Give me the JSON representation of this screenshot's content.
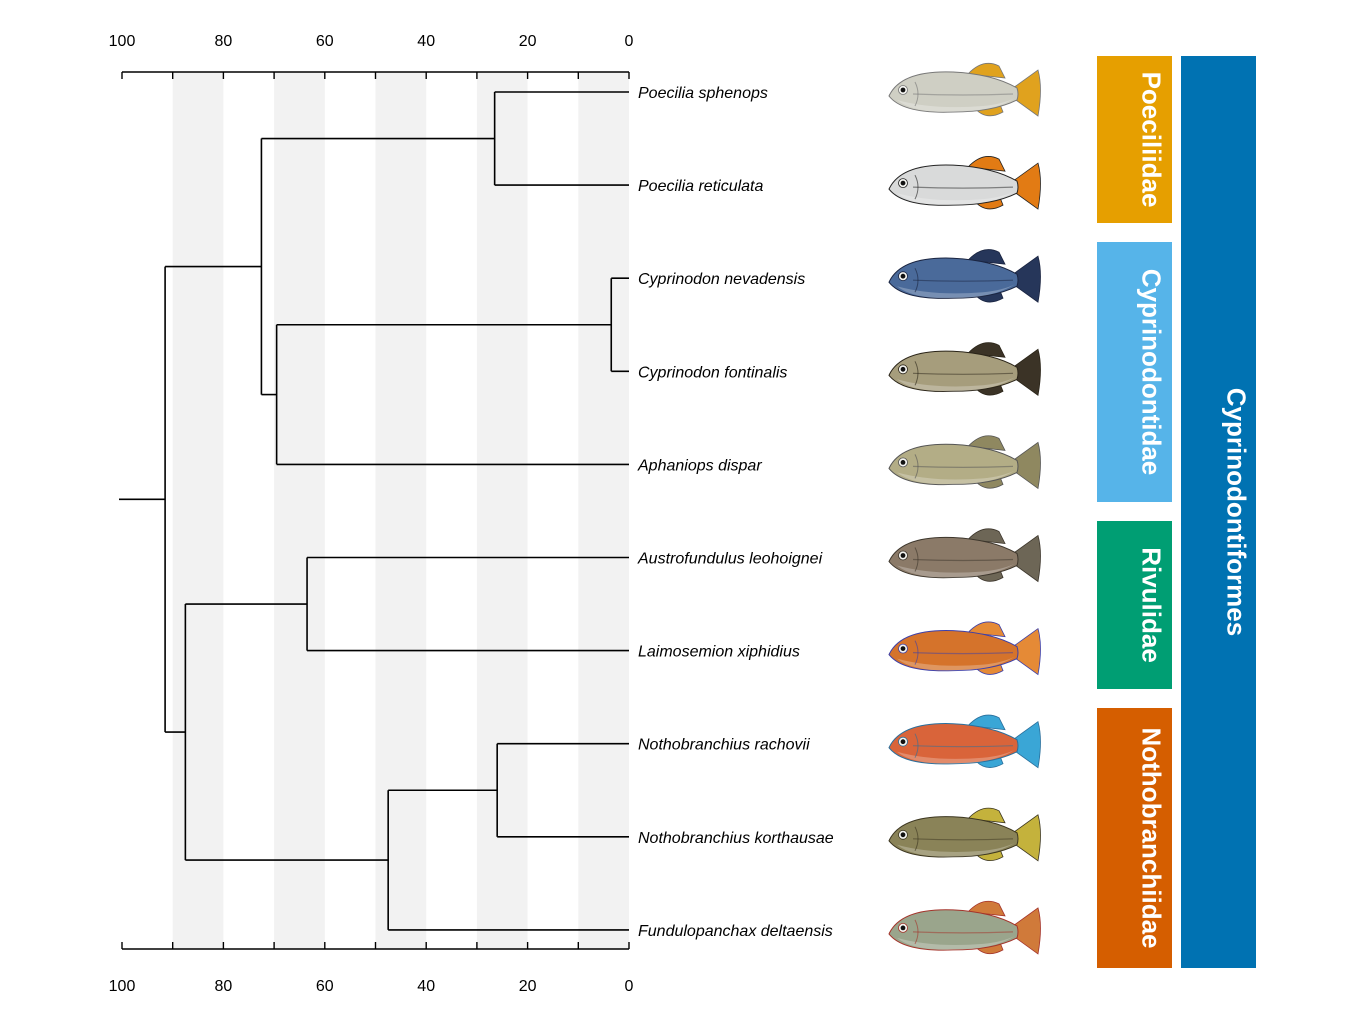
{
  "axis": {
    "ticks": [
      100,
      80,
      60,
      40,
      20,
      0
    ],
    "minor_ticks": [
      90,
      70,
      50,
      30,
      10
    ],
    "bands": [
      [
        90,
        80
      ],
      [
        70,
        60
      ],
      [
        50,
        40
      ],
      [
        30,
        20
      ],
      [
        10,
        0
      ]
    ]
  },
  "species": [
    "Poecilia sphenops",
    "Poecilia reticulata",
    "Cyprinodon nevadensis",
    "Cyprinodon fontinalis",
    "Aphaniops dispar",
    "Austrofundulus leohoignei",
    "Laimosemion xiphidius",
    "Nothobranchius rachovii",
    "Nothobranchius korthausae",
    "Fundulopanchax deltaensis"
  ],
  "fish_icons": [
    {
      "name": "fish-icon",
      "body": "#cfcfc4",
      "fin": "#e0a21e",
      "dark": "#777"
    },
    {
      "name": "fish-icon",
      "body": "#d9dada",
      "fin": "#e27b14",
      "dark": "#222"
    },
    {
      "name": "fish-icon",
      "body": "#4a6a9a",
      "fin": "#26365a",
      "dark": "#1a2440"
    },
    {
      "name": "fish-icon",
      "body": "#a69d7c",
      "fin": "#3b3326",
      "dark": "#2a2418"
    },
    {
      "name": "fish-icon",
      "body": "#b3ad86",
      "fin": "#8f8860",
      "dark": "#555"
    },
    {
      "name": "fish-icon",
      "body": "#8b7a68",
      "fin": "#6d6656",
      "dark": "#3d362c"
    },
    {
      "name": "fish-icon",
      "body": "#d5732b",
      "fin": "#e58a36",
      "dark": "#3d3fa8"
    },
    {
      "name": "fish-icon",
      "body": "#d9643a",
      "fin": "#3aa6d6",
      "dark": "#2a6f9c"
    },
    {
      "name": "fish-icon",
      "body": "#8a8358",
      "fin": "#c4b23c",
      "dark": "#3c3620"
    },
    {
      "name": "fish-icon",
      "body": "#9aa58c",
      "fin": "#d07a3a",
      "dark": "#a4332a"
    }
  ],
  "families": [
    {
      "label": "Poeciliidae",
      "color": "#E69F00"
    },
    {
      "label": "Cyprinodontidae",
      "color": "#56B4E9"
    },
    {
      "label": "Rivulidae",
      "color": "#009E73"
    },
    {
      "label": "Nothobranchiidae",
      "color": "#D55E00"
    }
  ],
  "order": {
    "label": "Cyprinodontiformes",
    "color": "#0072B2"
  },
  "tree": {
    "leaves_age": 0,
    "nodes": [
      {
        "id": "n_poecilia",
        "age": 26.5,
        "children": [
          "L0",
          "L1"
        ]
      },
      {
        "id": "n_cyprinodon",
        "age": 3.5,
        "children": [
          "L2",
          "L3"
        ]
      },
      {
        "id": "n_cyp_aph",
        "age": 69.5,
        "children": [
          "n_cyprinodon",
          "L4"
        ]
      },
      {
        "id": "n_poe_cyp",
        "age": 72.5,
        "children": [
          "n_poecilia",
          "n_cyp_aph"
        ]
      },
      {
        "id": "n_riv",
        "age": 63.5,
        "children": [
          "L5",
          "L6"
        ]
      },
      {
        "id": "n_notho",
        "age": 26.0,
        "children": [
          "L7",
          "L8"
        ]
      },
      {
        "id": "n_notho_fund",
        "age": 47.5,
        "children": [
          "n_notho",
          "L9"
        ]
      },
      {
        "id": "n_riv_notho",
        "age": 87.5,
        "children": [
          "n_riv",
          "n_notho_fund"
        ]
      },
      {
        "id": "n_root",
        "age": 91.5,
        "children": [
          "n_poe_cyp",
          "n_riv_notho"
        ]
      }
    ],
    "root_stem_age": 100
  }
}
